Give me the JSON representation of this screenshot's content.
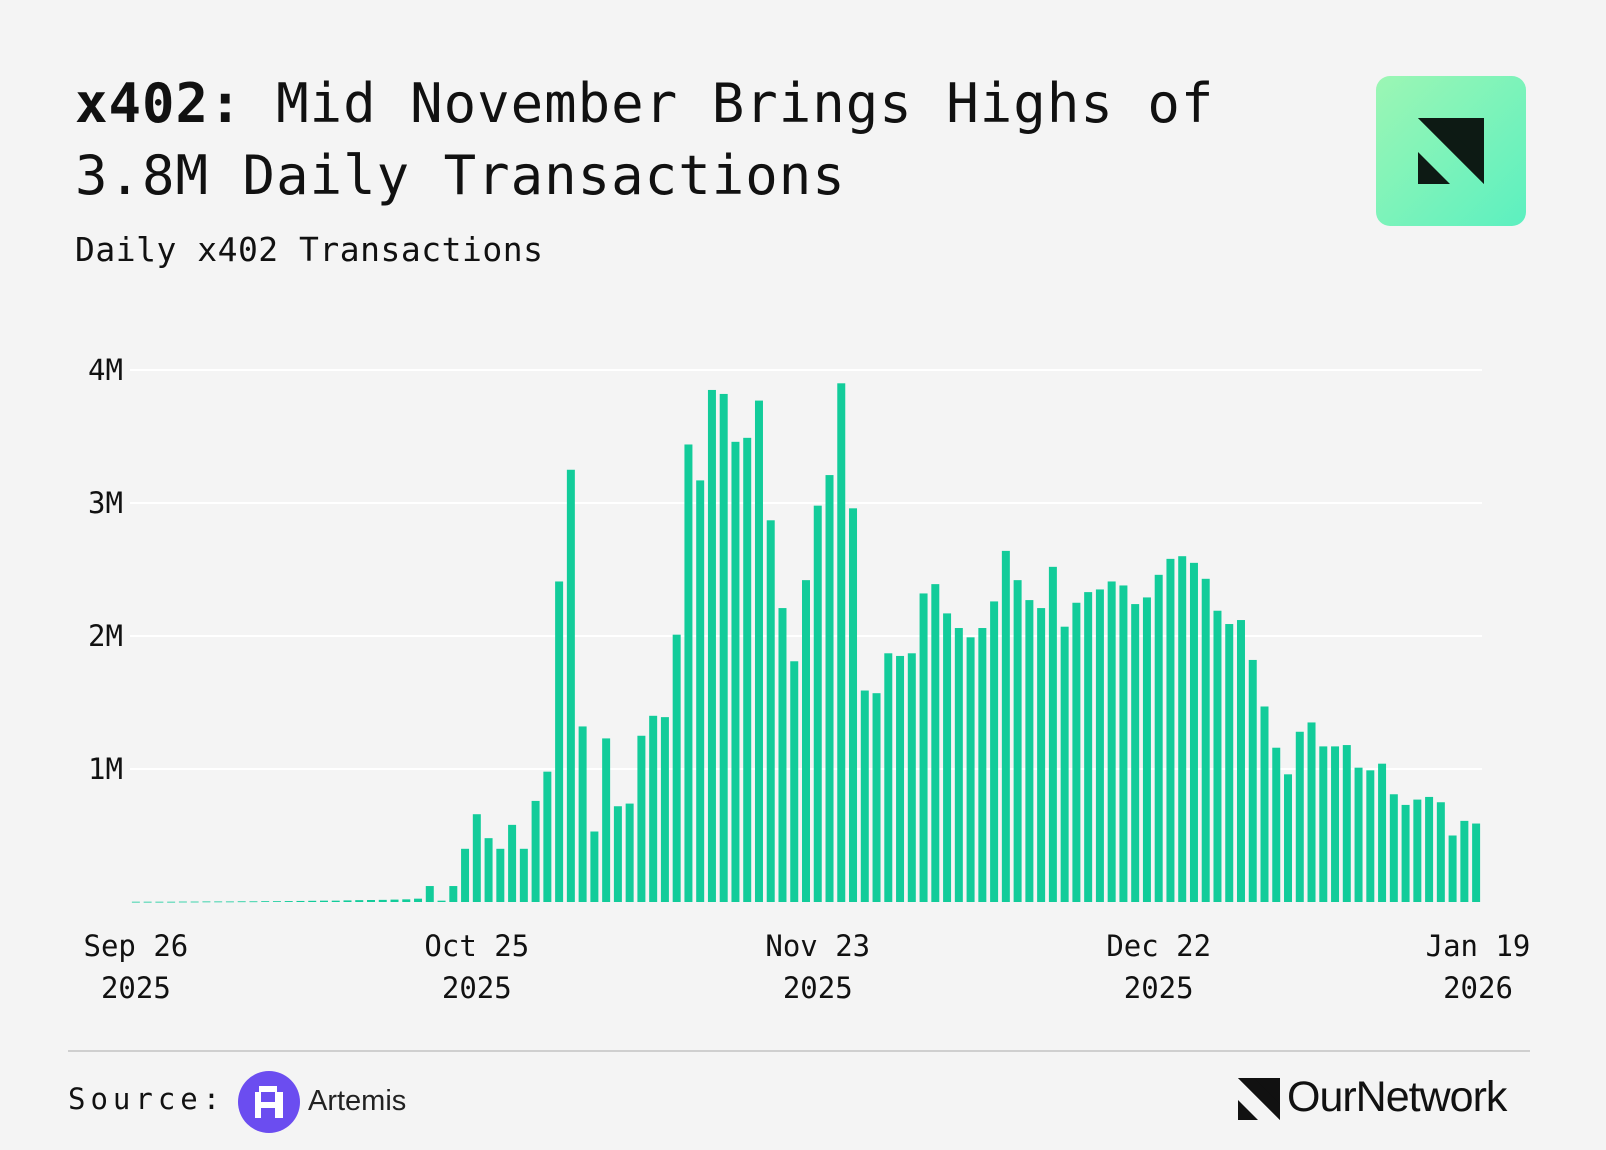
{
  "header": {
    "title_bold": "x402:",
    "title_rest": " Mid November Brings Highs of 3.8M Daily Transactions",
    "subtitle": "Daily x402 Transactions"
  },
  "footer": {
    "source_label": "Source:",
    "source_name": "Artemis",
    "brand_name": "OurNetwork"
  },
  "colors": {
    "background": "#f4f4f4",
    "bar": "#12cc9a",
    "grid": "#ffffff",
    "text": "#111111",
    "artemis": "#6b4df0"
  },
  "chart_data": {
    "type": "bar",
    "title": "Daily x402 Transactions",
    "xlabel": "",
    "ylabel": "",
    "ylim": [
      0,
      4000000
    ],
    "yticks": [
      {
        "value": 1000000,
        "label": "1M"
      },
      {
        "value": 2000000,
        "label": "2M"
      },
      {
        "value": 3000000,
        "label": "3M"
      },
      {
        "value": 4000000,
        "label": "4M"
      }
    ],
    "xticks": [
      {
        "index": 0,
        "line1": "Sep 26",
        "line2": "2025"
      },
      {
        "index": 29,
        "line1": "Oct 25",
        "line2": "2025"
      },
      {
        "index": 58,
        "line1": "Nov 23",
        "line2": "2025"
      },
      {
        "index": 87,
        "line1": "Dec 22",
        "line2": "2025"
      },
      {
        "index": 115,
        "line1": "Jan 19",
        "line2": "2026"
      }
    ],
    "start_date": "2025-09-26",
    "series": [
      {
        "name": "Daily x402 Transactions",
        "values": [
          2000,
          2000,
          2000,
          2000,
          3000,
          3000,
          4000,
          4000,
          4000,
          5000,
          5000,
          6000,
          6000,
          7000,
          8000,
          9000,
          10000,
          10000,
          12000,
          14000,
          15000,
          16000,
          18000,
          20000,
          25000,
          120000,
          10000,
          120000,
          400000,
          660000,
          480000,
          400000,
          580000,
          400000,
          760000,
          980000,
          2410000,
          3250000,
          1320000,
          530000,
          1230000,
          720000,
          740000,
          1250000,
          1400000,
          1390000,
          2010000,
          3440000,
          3170000,
          3850000,
          3820000,
          3460000,
          3490000,
          3770000,
          2870000,
          2210000,
          1810000,
          2420000,
          2980000,
          3210000,
          3900000,
          2960000,
          1590000,
          1570000,
          1870000,
          1850000,
          1870000,
          2320000,
          2390000,
          2170000,
          2060000,
          1990000,
          2060000,
          2260000,
          2640000,
          2420000,
          2270000,
          2210000,
          2520000,
          2070000,
          2250000,
          2330000,
          2350000,
          2410000,
          2380000,
          2240000,
          2290000,
          2460000,
          2580000,
          2600000,
          2550000,
          2430000,
          2190000,
          2090000,
          2120000,
          1820000,
          1470000,
          1160000,
          960000,
          1280000,
          1350000,
          1170000,
          1170000,
          1180000,
          1010000,
          990000,
          1040000,
          810000,
          730000,
          770000,
          790000,
          750000,
          500000,
          610000,
          590000
        ]
      }
    ]
  }
}
